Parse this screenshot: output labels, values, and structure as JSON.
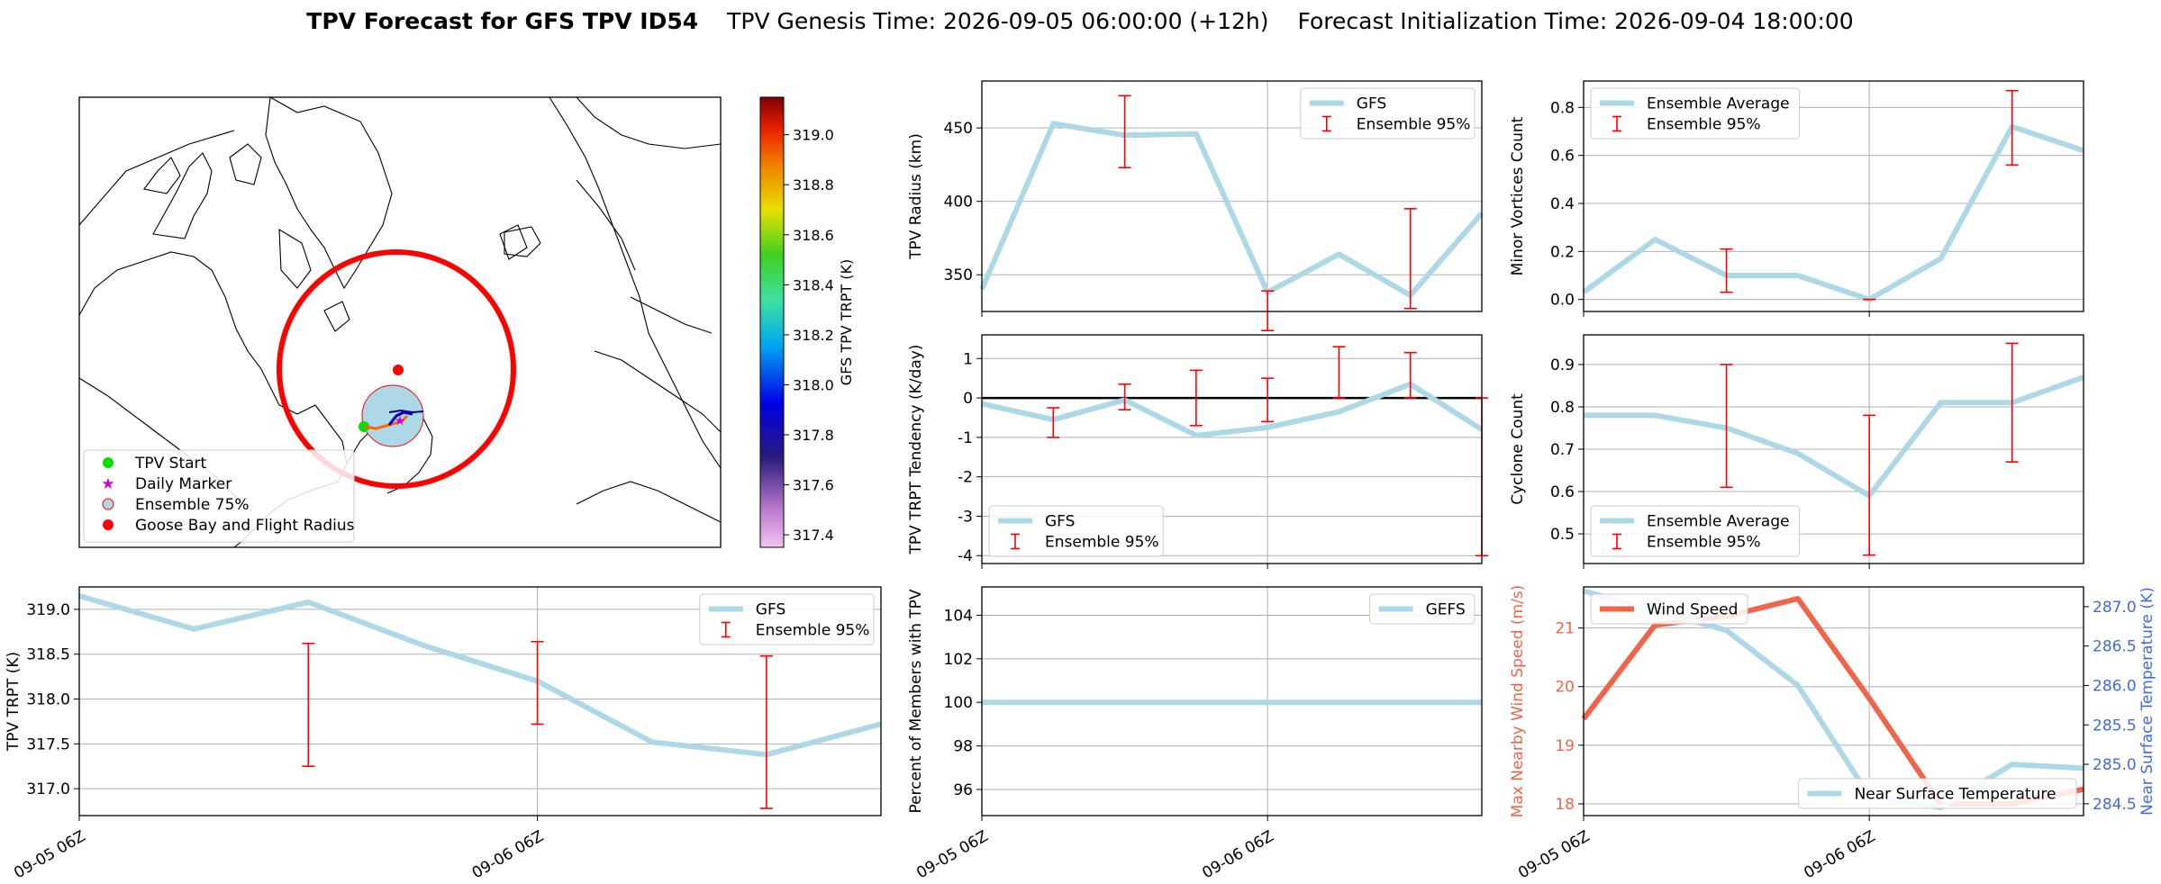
{
  "title": {
    "bold": "TPV Forecast for GFS TPV ID54",
    "genesis": "TPV Genesis Time: 2026-09-05 06:00:00 (+12h)",
    "init": "Forecast Initialization Time: 2026-09-04 18:00:00"
  },
  "colors": {
    "gfs_line": "#add8e6",
    "error_bar": "#ff0000",
    "wind_line": "#f0644a",
    "temp_axis": "#4169e1",
    "flight_radius": "#ff0000",
    "tpv_start": "#00e000",
    "daily_marker": "#d000d0"
  },
  "map": {
    "type": "map",
    "colorbar": {
      "label": "GFS TPV TRPT (K)",
      "ticks": [
        "317.4",
        "317.6",
        "317.8",
        "318.0",
        "318.2",
        "318.4",
        "318.6",
        "318.8",
        "319.0"
      ],
      "min": 317.35,
      "max": 319.15
    },
    "legend": [
      {
        "label": "TPV Start",
        "icon": "green-dot"
      },
      {
        "label": "Daily Marker",
        "icon": "magenta-star"
      },
      {
        "label": "Ensemble 75%",
        "icon": "lightblue-circle"
      },
      {
        "label": "Goose Bay and Flight Radius",
        "icon": "red-dot"
      }
    ],
    "legend_placement": "lower-left"
  },
  "chart_data": [
    {
      "id": "radius",
      "type": "line",
      "ylabel": "TPV Radius (km)",
      "ylim": [
        325,
        482
      ],
      "yticks": [
        350,
        400,
        450
      ],
      "legend": "top-right",
      "grid": true,
      "x_ticks": [
        "09-05 06Z",
        "09-06 06Z"
      ],
      "series": [
        {
          "name": "GFS",
          "x": [
            0,
            1,
            2,
            3,
            4,
            5,
            6,
            7
          ],
          "values": [
            340,
            453,
            445,
            446,
            338,
            364,
            336,
            392
          ]
        }
      ],
      "errorbars": {
        "name": "Ensemble 95%",
        "x": [
          2,
          4,
          6
        ],
        "low": [
          423,
          312,
          327
        ],
        "high": [
          472,
          339,
          395
        ]
      }
    },
    {
      "id": "minor",
      "type": "line",
      "ylabel": "Minor Vortices Count",
      "ylim": [
        -0.05,
        0.91
      ],
      "yticks": [
        0.0,
        0.2,
        0.4,
        0.6,
        0.8
      ],
      "legend": "top-left",
      "grid": true,
      "x_ticks": [
        "09-05 06Z",
        "09-06 06Z"
      ],
      "series": [
        {
          "name": "Ensemble Average",
          "x": [
            0,
            1,
            2,
            3,
            4,
            5,
            6,
            7
          ],
          "values": [
            0.03,
            0.25,
            0.1,
            0.1,
            0.0,
            0.17,
            0.72,
            0.62
          ]
        }
      ],
      "errorbars": {
        "name": "Ensemble 95%",
        "x": [
          2,
          4,
          6
        ],
        "low": [
          0.03,
          0.0,
          0.56
        ],
        "high": [
          0.21,
          0.0,
          0.87
        ]
      }
    },
    {
      "id": "tendency",
      "type": "line",
      "ylabel": "TPV TRPT Tendency (K/day)",
      "ylim": [
        -4.2,
        1.6
      ],
      "yticks": [
        -4,
        -3,
        -2,
        -1,
        0,
        1
      ],
      "legend": "bottom-left",
      "grid": true,
      "zero_line": true,
      "x_ticks": [
        "09-05 06Z",
        "09-06 06Z"
      ],
      "series": [
        {
          "name": "GFS",
          "x": [
            0,
            1,
            2,
            3,
            4,
            5,
            6,
            7
          ],
          "values": [
            -0.15,
            -0.55,
            -0.05,
            -0.95,
            -0.75,
            -0.35,
            0.35,
            -0.8
          ]
        }
      ],
      "errorbars": {
        "name": "Ensemble 95%",
        "x": [
          1,
          2,
          3,
          4,
          5,
          6,
          7
        ],
        "low": [
          -1.0,
          -0.3,
          -0.7,
          -0.6,
          0.0,
          0.0,
          -4.0
        ],
        "high": [
          -0.25,
          0.35,
          0.7,
          0.5,
          1.3,
          1.15,
          0.0
        ]
      }
    },
    {
      "id": "cyclone",
      "type": "line",
      "ylabel": "Cyclone Count",
      "ylim": [
        0.43,
        0.97
      ],
      "yticks": [
        0.5,
        0.6,
        0.7,
        0.8,
        0.9
      ],
      "legend": "bottom-left",
      "grid": true,
      "x_ticks": [
        "09-05 06Z",
        "09-06 06Z"
      ],
      "series": [
        {
          "name": "Ensemble Average",
          "x": [
            0,
            1,
            2,
            3,
            4,
            5,
            6,
            7
          ],
          "values": [
            0.78,
            0.78,
            0.75,
            0.69,
            0.59,
            0.81,
            0.81,
            0.87
          ]
        }
      ],
      "errorbars": {
        "name": "Ensemble 95%",
        "x": [
          2,
          4,
          6
        ],
        "low": [
          0.61,
          0.45,
          0.67
        ],
        "high": [
          0.9,
          0.78,
          0.95
        ]
      }
    },
    {
      "id": "trpt",
      "type": "line",
      "ylabel": "TPV TRPT (K)",
      "ylim": [
        316.7,
        319.25
      ],
      "yticks": [
        317.0,
        317.5,
        318.0,
        318.5,
        319.0
      ],
      "legend": "top-right",
      "grid": true,
      "x_ticks": [
        "09-05 06Z",
        "09-06 06Z"
      ],
      "series": [
        {
          "name": "GFS",
          "x": [
            0,
            1,
            2,
            3,
            4,
            5,
            6,
            7
          ],
          "values": [
            319.15,
            318.78,
            319.08,
            318.6,
            318.2,
            317.52,
            317.38,
            317.72
          ]
        }
      ],
      "errorbars": {
        "name": "Ensemble 95%",
        "x": [
          2,
          4,
          6
        ],
        "low": [
          317.25,
          317.72,
          316.78
        ],
        "high": [
          318.62,
          318.64,
          318.48
        ]
      }
    },
    {
      "id": "percent",
      "type": "line",
      "ylabel": "Percent of Members with TPV",
      "ylim": [
        94.8,
        105.3
      ],
      "yticks": [
        96,
        98,
        100,
        102,
        104
      ],
      "legend": "top-right",
      "grid": true,
      "x_ticks": [
        "09-05 06Z",
        "09-06 06Z"
      ],
      "series": [
        {
          "name": "GEFS",
          "x": [
            0,
            1,
            2,
            3,
            4,
            5,
            6,
            7
          ],
          "values": [
            100,
            100,
            100,
            100,
            100,
            100,
            100,
            100
          ]
        }
      ]
    },
    {
      "id": "wind",
      "type": "line",
      "ylabel": "Max Nearby Wind Speed (m/s)",
      "y2label": "Near Surface Temperature (K)",
      "ylim": [
        17.8,
        21.7
      ],
      "yticks": [
        18,
        19,
        20,
        21
      ],
      "y2lim": [
        284.35,
        287.25
      ],
      "y2ticks": [
        "284.5",
        "285.0",
        "285.5",
        "286.0",
        "286.5",
        "287.0"
      ],
      "grid": true,
      "x_ticks": [
        "09-05 06Z",
        "09-06 06Z"
      ],
      "series": [
        {
          "name": "Wind Speed",
          "axis": "left",
          "legend": "top-left",
          "x": [
            0,
            1,
            2,
            3,
            4,
            5,
            6,
            7
          ],
          "values": [
            19.45,
            21.05,
            21.2,
            21.5,
            19.8,
            18.0,
            18.0,
            18.25
          ]
        },
        {
          "name": "Near Surface Temperature",
          "axis": "right",
          "legend": "bottom-right",
          "x": [
            0,
            1,
            2,
            3,
            4,
            5,
            6,
            7
          ],
          "values": [
            287.2,
            286.95,
            286.7,
            286.0,
            284.6,
            284.45,
            285.0,
            284.95
          ]
        }
      ]
    }
  ]
}
